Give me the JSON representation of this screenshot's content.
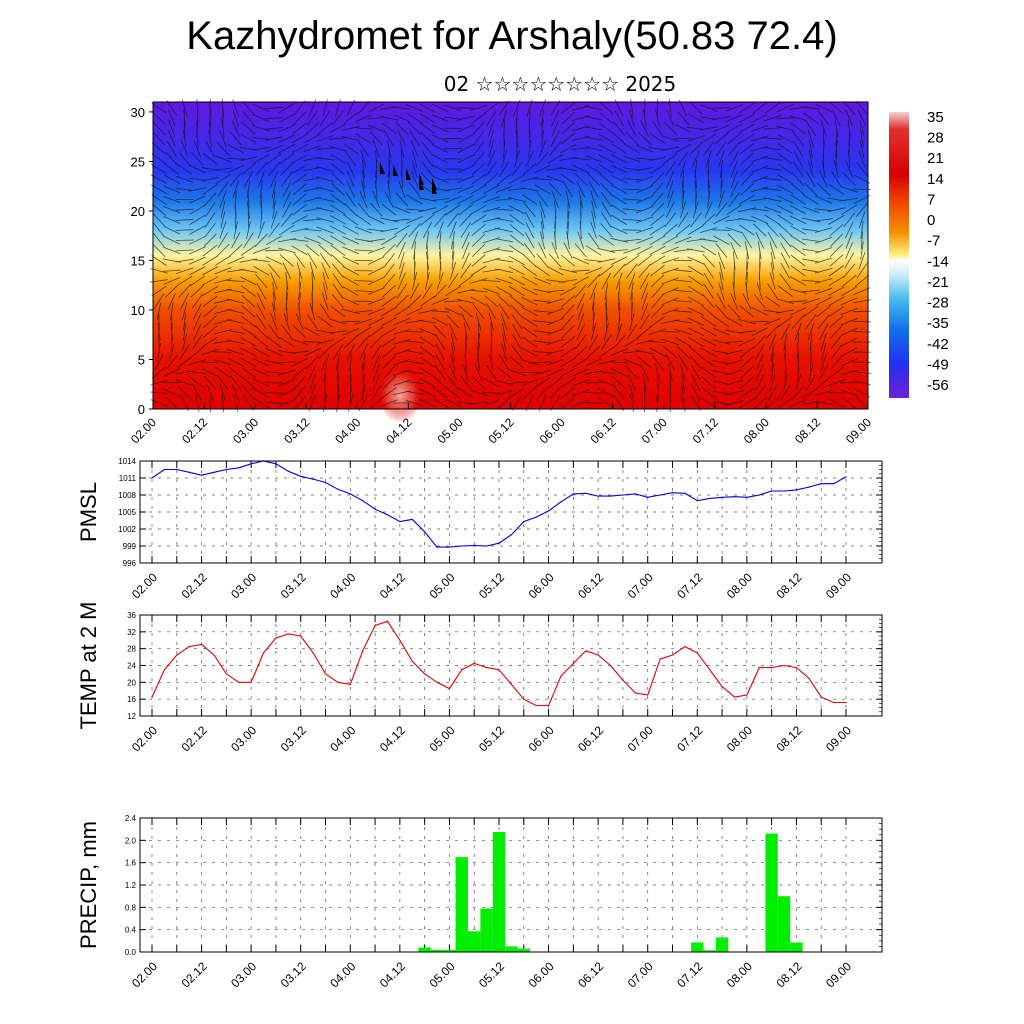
{
  "title": "Kazhydromet for Arshaly(50.83 72.4)",
  "subtitle": "02 ☆☆☆☆☆☆☆☆ 2025",
  "x_ticks": [
    "02.00",
    "02.12",
    "03.00",
    "03.12",
    "04.00",
    "04.12",
    "05.00",
    "05.12",
    "06.00",
    "06.12",
    "07.00",
    "07.12",
    "08.00",
    "08.12",
    "09.00"
  ],
  "chart_data": [
    {
      "type": "heatmap",
      "x_ticks": [
        "02.00",
        "02.12",
        "03.00",
        "03.12",
        "04.00",
        "04.12",
        "05.00",
        "05.12",
        "06.00",
        "06.12",
        "07.00",
        "07.12",
        "08.00",
        "08.12",
        "09.00"
      ],
      "y_ticks": [
        "0",
        "5",
        "10",
        "15",
        "20",
        "25",
        "30"
      ],
      "ylim": [
        0,
        31
      ],
      "colorbar_labels": [
        "35",
        "28",
        "21",
        "14",
        "7",
        "0",
        "-7",
        "-14",
        "-21",
        "-28",
        "-35",
        "-42",
        "-49",
        "-56"
      ],
      "colorbar_colors": [
        "#f4c8c8",
        "#e84848",
        "#d80000",
        "#e83000",
        "#f06000",
        "#f49000",
        "#f8c400",
        "#fff080",
        "#c8ecf8",
        "#40b8f0",
        "#1470e8",
        "#2030f0",
        "#3010e8",
        "#7020d8"
      ],
      "field_profile": [
        {
          "y": 0,
          "value": 28,
          "color": "#e00000"
        },
        {
          "y": 5,
          "value": 22,
          "color": "#e81000"
        },
        {
          "y": 10,
          "value": 10,
          "color": "#f05000"
        },
        {
          "y": 13,
          "value": 0,
          "color": "#f8a000"
        },
        {
          "y": 15.5,
          "value": -12,
          "color": "#fff4a0"
        },
        {
          "y": 18,
          "value": -24,
          "color": "#70c8f4"
        },
        {
          "y": 21,
          "value": -40,
          "color": "#1c78e8"
        },
        {
          "y": 24,
          "value": -52,
          "color": "#2838f0"
        },
        {
          "y": 31,
          "value": -58,
          "color": "#6018e0"
        }
      ]
    },
    {
      "type": "line",
      "ylabel": "PMSL",
      "ylim": [
        996,
        1014
      ],
      "y_ticks": [
        "1014",
        "1011",
        "1008",
        "1005",
        "1002",
        "999",
        "996"
      ],
      "color": "#0000e0",
      "x": [
        0,
        0.5,
        1,
        1.5,
        2,
        2.5,
        3,
        3.5,
        4,
        4.5,
        5,
        5.5,
        6,
        6.5,
        7,
        7.5,
        8,
        8.5,
        9,
        9.5,
        10,
        10.5,
        11,
        11.5,
        12,
        12.5,
        13,
        13.5,
        14,
        14.5,
        15,
        15.5,
        16,
        16.5,
        17,
        17.5,
        18,
        18.5,
        19,
        19.5,
        20,
        20.5,
        21,
        21.5,
        22,
        22.5,
        23,
        23.5,
        24,
        24.5,
        25,
        25.5,
        26,
        26.5,
        27,
        27.5,
        28
      ],
      "values": [
        1011,
        1012.5,
        1012.5,
        1012,
        1011.5,
        1012,
        1012.5,
        1012.8,
        1013.5,
        1014,
        1013.5,
        1012.2,
        1011.3,
        1010.8,
        1010.2,
        1009,
        1008.2,
        1007,
        1005.5,
        1004.5,
        1003.3,
        1003.7,
        1001.5,
        998.8,
        998.8,
        999,
        999.1,
        999,
        999.5,
        1001,
        1003.3,
        1004.1,
        1005.2,
        1006.8,
        1008.2,
        1008.3,
        1007.8,
        1007.8,
        1008,
        1008.2,
        1007.6,
        1008,
        1008.4,
        1008.3,
        1007,
        1007.4,
        1007.6,
        1007.7,
        1007.6,
        1008,
        1008.7,
        1008.7,
        1008.9,
        1009.4,
        1010,
        1010,
        1011.2
      ]
    },
    {
      "type": "line",
      "ylabel": "TEMP at 2 M",
      "ylim": [
        12,
        36
      ],
      "y_ticks": [
        "36",
        "32",
        "28",
        "24",
        "20",
        "16",
        "12"
      ],
      "color": "#e00000",
      "x": [
        0,
        0.5,
        1,
        1.5,
        2,
        2.5,
        3,
        3.5,
        4,
        4.5,
        5,
        5.5,
        6,
        6.5,
        7,
        7.5,
        8,
        8.5,
        9,
        9.5,
        10,
        10.5,
        11,
        11.5,
        12,
        12.5,
        13,
        13.5,
        14,
        14.5,
        15,
        15.5,
        16,
        16.5,
        17,
        17.5,
        18,
        18.5,
        19,
        19.5,
        20,
        20.5,
        21,
        21.5,
        22,
        22.5,
        23,
        23.5,
        24,
        24.5,
        25,
        25.5,
        26,
        26.5,
        27,
        27.5,
        28
      ],
      "values": [
        16.5,
        23,
        26.5,
        28.5,
        29,
        26.5,
        22,
        20,
        20,
        27,
        30.5,
        31.5,
        31,
        27,
        22,
        20,
        19.5,
        27.5,
        33.5,
        34.5,
        30,
        25,
        22,
        20,
        18.5,
        23,
        24.5,
        23.5,
        23,
        19.5,
        16,
        14.5,
        14.5,
        21.5,
        24.5,
        27.5,
        26.5,
        24,
        20.5,
        17.5,
        17,
        25.5,
        26.5,
        28.5,
        27,
        23,
        19,
        16.5,
        17,
        23.5,
        23.5,
        24,
        23.5,
        21,
        16.5,
        15.2,
        15.2
      ]
    },
    {
      "type": "bar",
      "ylabel": "PRECIP, mm",
      "ylim": [
        0,
        2.4
      ],
      "y_ticks": [
        "2.4",
        "2.0",
        "1.6",
        "1.2",
        "0.8",
        "0.4",
        "0.0"
      ],
      "color": "#00ee00",
      "x": [
        11,
        11.5,
        12,
        12.5,
        13,
        13.5,
        14,
        14.5,
        15,
        15.5,
        22,
        22.5,
        23,
        25,
        25.5,
        26,
        26.5
      ],
      "values": [
        0.08,
        0.04,
        0.04,
        1.7,
        0.37,
        0.78,
        2.15,
        0.1,
        0.06,
        0.0,
        0.17,
        0.03,
        0.26,
        2.12,
        1.0,
        0.17,
        0.0
      ]
    }
  ]
}
